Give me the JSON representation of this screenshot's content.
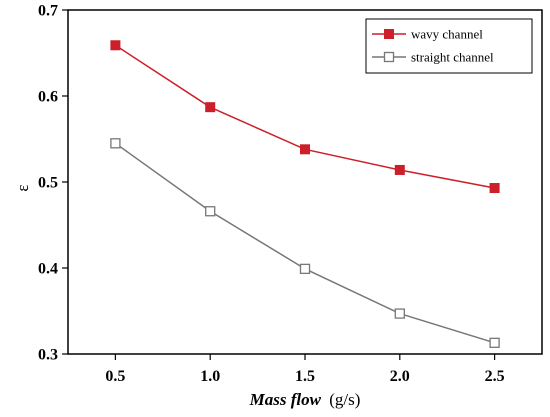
{
  "chart_data": {
    "type": "line",
    "x": [
      0.5,
      1.0,
      1.5,
      2.0,
      2.5
    ],
    "x_tick_labels": [
      "0.5",
      "1.0",
      "1.5",
      "2.0",
      "2.5"
    ],
    "y_tick_values": [
      0.3,
      0.4,
      0.5,
      0.6,
      0.7
    ],
    "y_tick_labels": [
      "0.3",
      "0.4",
      "0.5",
      "0.6",
      "0.7"
    ],
    "xlim": [
      0.25,
      2.75
    ],
    "ylim": [
      0.3,
      0.7
    ],
    "xlabel_italic": "Mass flow",
    "xlabel_unit": "(g/s)",
    "ylabel": "ε",
    "grid": false,
    "legend_position": "top-right",
    "series": [
      {
        "name": "wavy channel",
        "values": [
          0.659,
          0.587,
          0.538,
          0.514,
          0.493
        ],
        "color": "#cc1f2a",
        "marker": "filled-square"
      },
      {
        "name": "straight channel",
        "values": [
          0.545,
          0.466,
          0.399,
          0.347,
          0.313
        ],
        "color": "#777777",
        "marker": "open-square"
      }
    ]
  }
}
